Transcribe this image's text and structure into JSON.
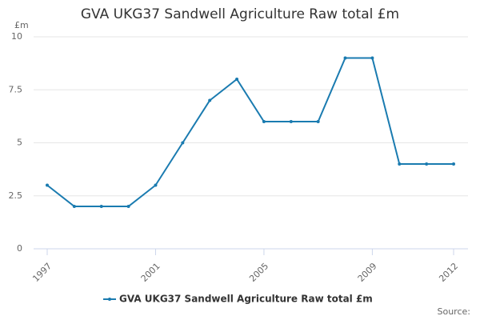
{
  "chart_data": {
    "type": "line",
    "title": "GVA UKG37 Sandwell Agriculture Raw total £m",
    "y_label": "£m",
    "x": [
      1997,
      1998,
      1999,
      2000,
      2001,
      2002,
      2003,
      2004,
      2005,
      2006,
      2007,
      2008,
      2009,
      2010,
      2011,
      2012
    ],
    "series": [
      {
        "name": "GVA UKG37 Sandwell Agriculture Raw total £m",
        "color": "#1a7bb0",
        "values": [
          3,
          2,
          2,
          2,
          3,
          5,
          7,
          8,
          6,
          6,
          6,
          9,
          9,
          4,
          4,
          4
        ]
      }
    ],
    "xlim": [
      1997,
      2012
    ],
    "xticks": [
      1997,
      2001,
      2005,
      2009,
      2012
    ],
    "ylim": [
      0,
      10
    ],
    "yticks": [
      0,
      2.5,
      5,
      7.5,
      10
    ],
    "grid": true,
    "source": "Source:"
  }
}
